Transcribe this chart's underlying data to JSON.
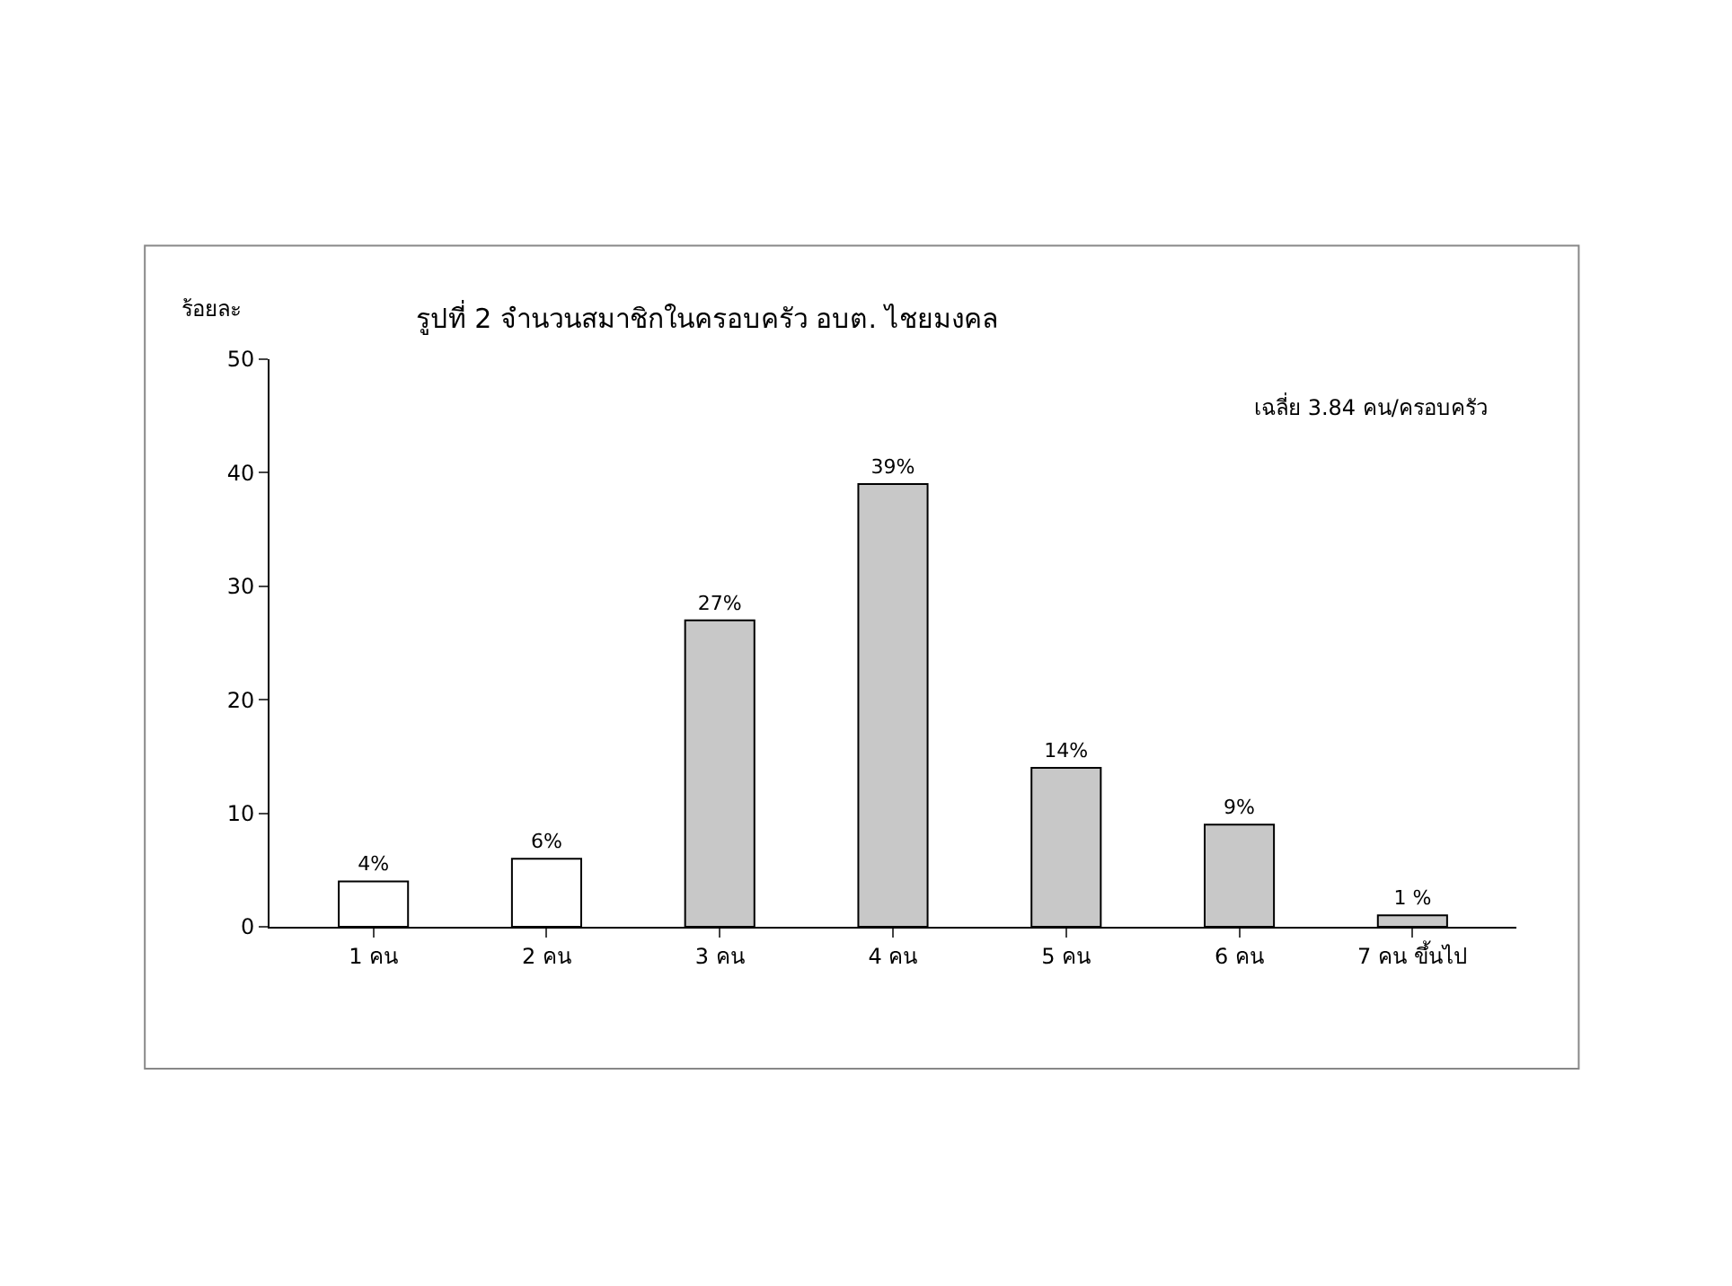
{
  "chart_data": {
    "type": "bar",
    "title": "รูปที่ 2 จำนวนสมาชิกในครอบครัว อบต. ไชยมงคล",
    "ylabel": "ร้อยละ",
    "categories": [
      "1 คน",
      "2 คน",
      "3 คน",
      "4 คน",
      "5 คน",
      "6 คน",
      "7 คน ขึ้นไป"
    ],
    "values": [
      4,
      6,
      27,
      39,
      14,
      9,
      1
    ],
    "value_labels": [
      "4%",
      "6%",
      "27%",
      "39%",
      "14%",
      "9%",
      "1 %"
    ],
    "colors": [
      "#ffffff",
      "#ffffff",
      "#c8c8c8",
      "#c8c8c8",
      "#c8c8c8",
      "#c8c8c8",
      "#c8c8c8"
    ],
    "ylim": [
      0,
      50
    ],
    "yticks": [
      0,
      10,
      20,
      30,
      40,
      50
    ],
    "grid": false,
    "annotations": [
      "เฉลี่ย 3.84 คน/ครอบครัว"
    ]
  }
}
